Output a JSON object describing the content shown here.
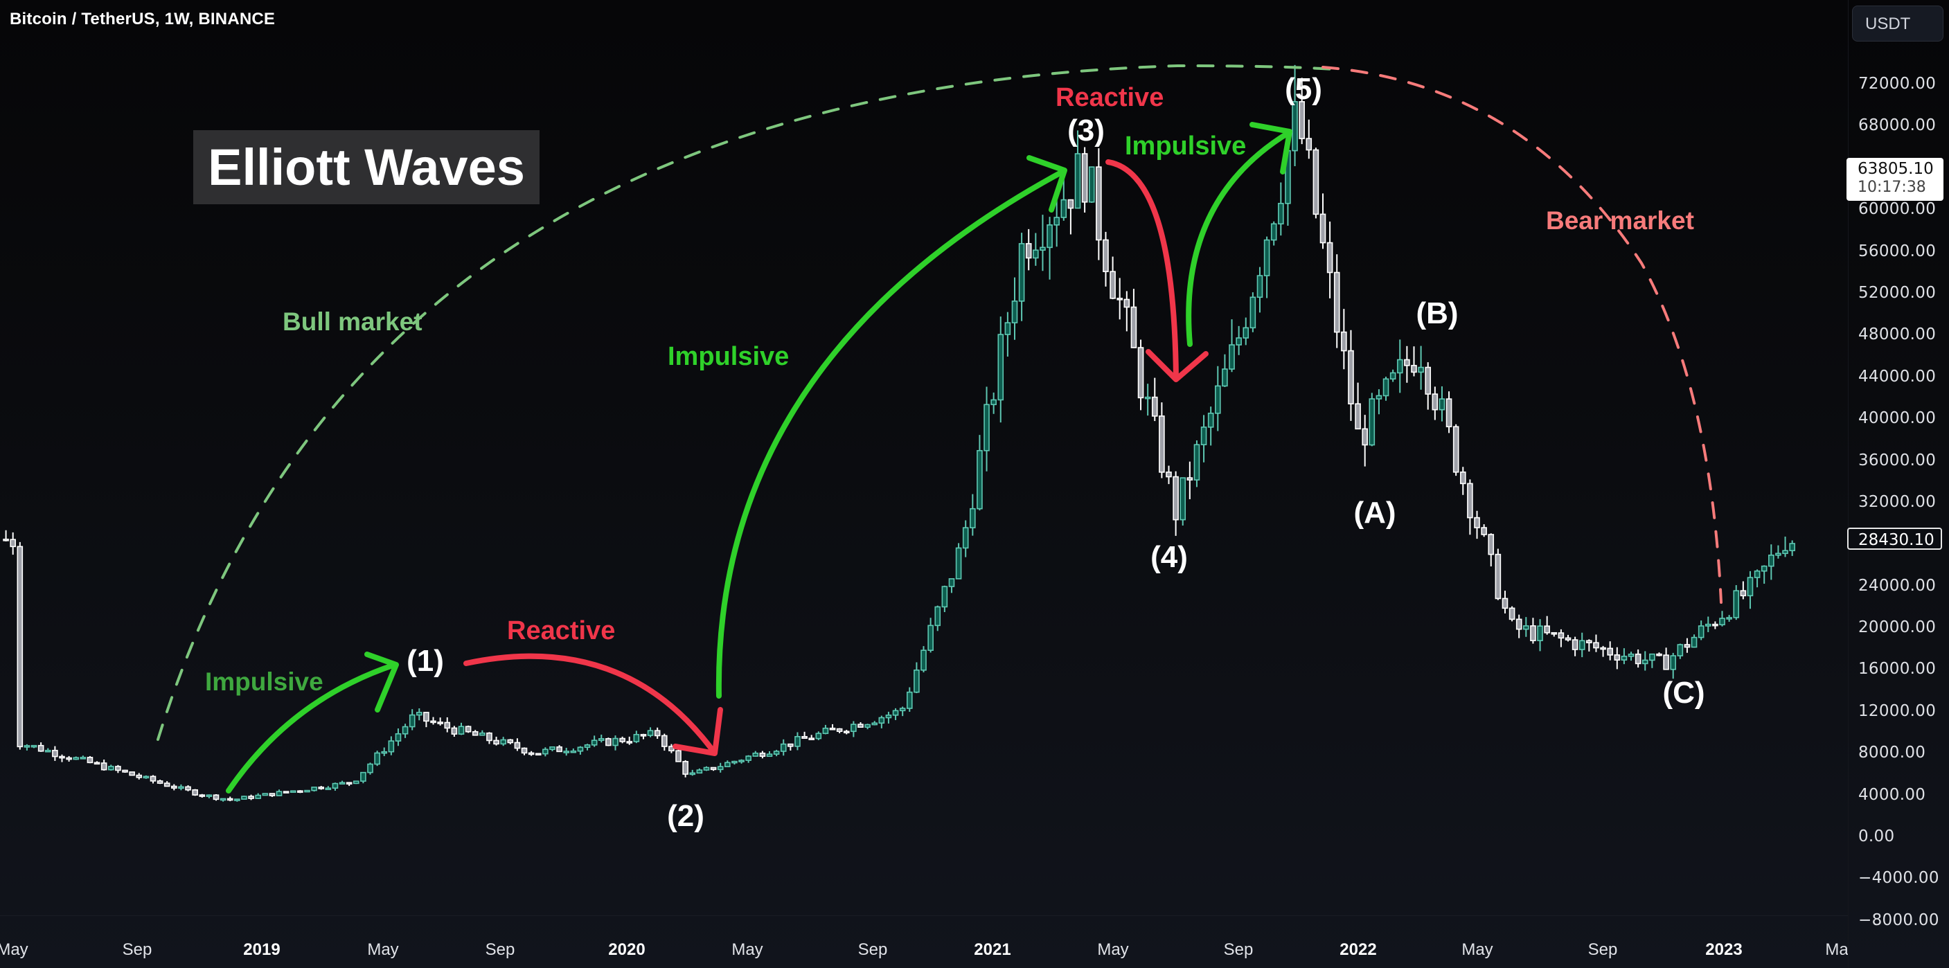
{
  "header": {
    "symbol_title": "Bitcoin / TetherUS, 1W, BINANCE"
  },
  "price_axis": {
    "currency": "USDT",
    "ticks": [
      "72000.00",
      "68000.00",
      "60000.00",
      "56000.00",
      "52000.00",
      "48000.00",
      "44000.00",
      "40000.00",
      "36000.00",
      "32000.00",
      "24000.00",
      "20000.00",
      "16000.00",
      "12000.00",
      "8000.00",
      "4000.00",
      "0.00",
      "−4000.00",
      "−8000.00"
    ],
    "tick_values": [
      72000,
      68000,
      60000,
      56000,
      52000,
      48000,
      44000,
      40000,
      36000,
      32000,
      24000,
      20000,
      16000,
      12000,
      8000,
      4000,
      0,
      -4000,
      -8000
    ],
    "last_price": "63805.10",
    "countdown": "10:17:38",
    "current_price": "28430.10"
  },
  "time_axis": {
    "labels": [
      {
        "text": "May",
        "x": 18,
        "year": false
      },
      {
        "text": "Sep",
        "x": 198,
        "year": false
      },
      {
        "text": "2019",
        "x": 378,
        "year": true
      },
      {
        "text": "May",
        "x": 553,
        "year": false
      },
      {
        "text": "Sep",
        "x": 722,
        "year": false
      },
      {
        "text": "2020",
        "x": 905,
        "year": true
      },
      {
        "text": "May",
        "x": 1079,
        "year": false
      },
      {
        "text": "Sep",
        "x": 1260,
        "year": false
      },
      {
        "text": "2021",
        "x": 1433,
        "year": true
      },
      {
        "text": "May",
        "x": 1607,
        "year": false
      },
      {
        "text": "Sep",
        "x": 1788,
        "year": false
      },
      {
        "text": "2022",
        "x": 1961,
        "year": true
      },
      {
        "text": "May",
        "x": 2133,
        "year": false
      },
      {
        "text": "Sep",
        "x": 2314,
        "year": false
      },
      {
        "text": "2023",
        "x": 2489,
        "year": true
      },
      {
        "text": "Ma",
        "x": 2652,
        "year": false
      }
    ]
  },
  "annotations": {
    "title": "Elliott Waves",
    "bull_market": "Bull market",
    "bear_market": "Bear market",
    "impulsive_1": "Impulsive",
    "reactive_2": "Reactive",
    "impulsive_3": "Impulsive",
    "reactive_4": "Reactive",
    "impulsive_5": "Impulsive",
    "waves": {
      "w1": "(1)",
      "w2": "(2)",
      "w3": "(3)",
      "w4": "(4)",
      "w5": "(5)",
      "wA": "(A)",
      "wB": "(B)",
      "wC": "(C)"
    }
  },
  "colors": {
    "background_top": "#060608",
    "background_bottom": "#11141c",
    "up_border": "#5ec7b2",
    "up_fill": "#0d5d4f",
    "down_border": "#ffffff",
    "down_fill": "#9ea0a8",
    "impulsive": "#2fd12a",
    "reactive": "#f0364a",
    "bull_dash": "#7ec77e",
    "bear_dash": "#f77b7b"
  },
  "chart_data": {
    "type": "candlestick",
    "title": "Bitcoin / TetherUS, 1W, BINANCE",
    "xlabel": "",
    "ylabel": "USDT",
    "ylim": [
      -8000,
      74000
    ],
    "x_range": [
      "May 2018",
      "Mar 2023"
    ],
    "approx_weekly_close_path": [
      {
        "date": "2018-05",
        "price": 9000
      },
      {
        "date": "2018-08",
        "price": 6500
      },
      {
        "date": "2018-11",
        "price": 4000
      },
      {
        "date": "2018-12",
        "price": 3500
      },
      {
        "date": "2019-04",
        "price": 5200
      },
      {
        "date": "2019-06",
        "price": 11500
      },
      {
        "date": "2019-07",
        "price": 10500
      },
      {
        "date": "2019-10",
        "price": 8000
      },
      {
        "date": "2020-02",
        "price": 9800
      },
      {
        "date": "2020-03",
        "price": 5800
      },
      {
        "date": "2020-07",
        "price": 9500
      },
      {
        "date": "2020-10",
        "price": 12000
      },
      {
        "date": "2020-12",
        "price": 28000
      },
      {
        "date": "2021-02",
        "price": 57000
      },
      {
        "date": "2021-04",
        "price": 63805
      },
      {
        "date": "2021-07",
        "price": 31000
      },
      {
        "date": "2021-09",
        "price": 47000
      },
      {
        "date": "2021-11",
        "price": 69000
      },
      {
        "date": "2022-01",
        "price": 38000
      },
      {
        "date": "2022-03",
        "price": 47000
      },
      {
        "date": "2022-06",
        "price": 20000
      },
      {
        "date": "2022-11",
        "price": 16500
      },
      {
        "date": "2023-02",
        "price": 24000
      },
      {
        "date": "2023-03",
        "price": 28430
      }
    ],
    "wave_points": [
      {
        "label": "(1)",
        "date": "2019-06",
        "price": 13800
      },
      {
        "label": "(2)",
        "date": "2020-03",
        "price": 3800
      },
      {
        "label": "(3)",
        "date": "2021-04",
        "price": 64800
      },
      {
        "label": "(4)",
        "date": "2021-07",
        "price": 28800
      },
      {
        "label": "(5)",
        "date": "2021-11",
        "price": 69000
      },
      {
        "label": "(A)",
        "date": "2022-01",
        "price": 33000
      },
      {
        "label": "(B)",
        "date": "2022-03",
        "price": 48200
      },
      {
        "label": "(C)",
        "date": "2022-11",
        "price": 15500
      }
    ],
    "annotations": [
      "Elliott Waves",
      "Bull market",
      "Bear market",
      "Impulsive",
      "Reactive",
      "Impulsive",
      "Reactive",
      "Impulsive"
    ],
    "grid": false
  }
}
